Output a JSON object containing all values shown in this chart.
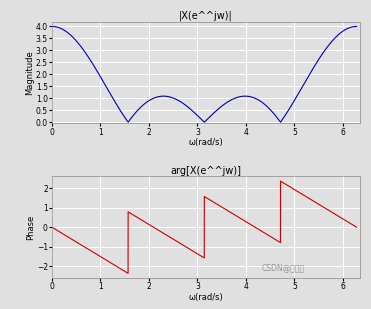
{
  "title_mag": "|X(e^^jw)|",
  "title_phase": "arg[X(e^^jw)]",
  "xlabel": "ω(rad/s)",
  "ylabel_mag": "Magnitude",
  "ylabel_phase": "Phase",
  "xlim": [
    0,
    6.35
  ],
  "ylim_mag": [
    -0.05,
    4.2
  ],
  "ylim_phase": [
    -2.6,
    2.6
  ],
  "xticks": [
    0,
    1,
    2,
    3,
    4,
    5,
    6
  ],
  "yticks_mag": [
    0.0,
    0.5,
    1.0,
    1.5,
    2.0,
    2.5,
    3.0,
    3.5,
    4.0
  ],
  "yticks_phase": [
    -2,
    -1,
    0,
    1,
    2
  ],
  "line_color_mag": "#0000bb",
  "line_color_phase": "#cc0000",
  "bg_color": "#e0e0e0",
  "grid_color": "#ffffff",
  "N": 4,
  "fig_width": 3.71,
  "fig_height": 3.09,
  "dpi": 100,
  "watermark": "CSDN@沐一柒"
}
